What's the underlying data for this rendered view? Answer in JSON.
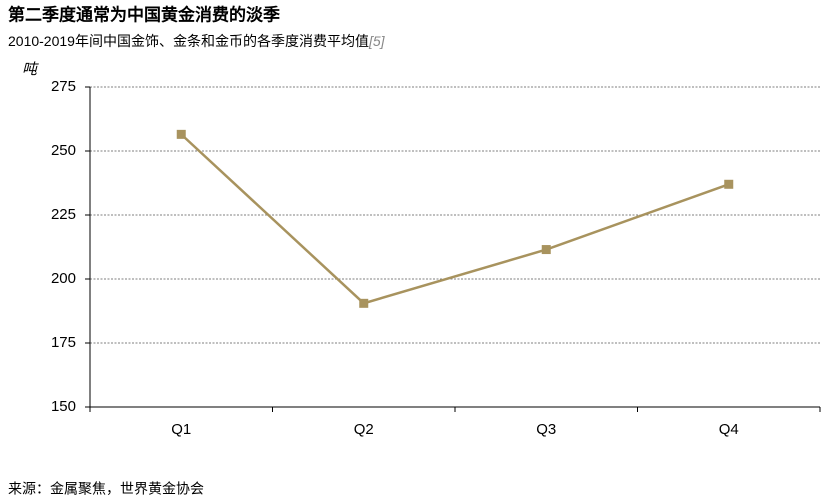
{
  "chart_data": {
    "type": "line",
    "title": "第二季度通常为中国黄金消费的淡季",
    "subtitle": "2010-2019年间中国金饰、金条和金币的各季度消费平均值",
    "subtitle_ref": "[5]",
    "y_label": "吨",
    "source": "来源：金属聚焦，世界黄金协会",
    "categories": [
      "Q1",
      "Q2",
      "Q3",
      "Q4"
    ],
    "series": [
      {
        "name": null,
        "color": "#a8935e",
        "values": [
          256.5,
          190.5,
          211.5,
          237
        ]
      }
    ],
    "ylim": [
      150,
      275
    ],
    "yticks": [
      150,
      175,
      200,
      225,
      250,
      275
    ],
    "grid": true
  }
}
